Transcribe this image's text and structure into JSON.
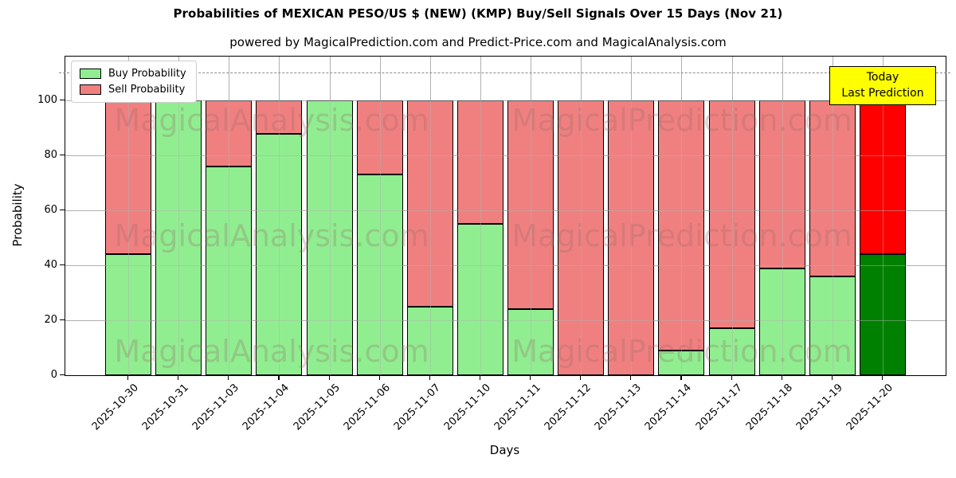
{
  "title": "Probabilities of MEXICAN PESO/US $ (NEW) (KMP) Buy/Sell Signals Over 15 Days (Nov 21)",
  "subtitle": "powered by MagicalPrediction.com and Predict-Price.com and MagicalAnalysis.com",
  "annotation_box": {
    "line1": "Today",
    "line2": "Last Prediction"
  },
  "watermarks": {
    "left": "MagicalAnalysis.com",
    "right": "MagicalPrediction.com"
  },
  "legend": {
    "items": [
      {
        "label": "Buy Probability",
        "color": "#90ee90"
      },
      {
        "label": "Sell Probability",
        "color": "#f08080"
      }
    ]
  },
  "colors": {
    "buy": "#90ee90",
    "sell": "#f08080",
    "today_buy": "#008000",
    "today_sell": "#ff0000",
    "grid": "#b0b0b0",
    "dashed_line": "#8a8a8a",
    "annotation_bg": "#ffff00"
  },
  "chart_data": {
    "type": "bar",
    "stacked": true,
    "title": "Probabilities of MEXICAN PESO/US $ (NEW) (KMP) Buy/Sell Signals Over 15 Days (Nov 21)",
    "xlabel": "Days",
    "ylabel": "Probability",
    "categories": [
      "2025-10-30",
      "2025-10-31",
      "2025-11-03",
      "2025-11-04",
      "2025-11-05",
      "2025-11-06",
      "2025-11-07",
      "2025-11-10",
      "2025-11-11",
      "2025-11-12",
      "2025-11-13",
      "2025-11-14",
      "2025-11-17",
      "2025-11-18",
      "2025-11-19",
      "2025-11-20"
    ],
    "series": [
      {
        "name": "Buy Probability",
        "color": "#90ee90",
        "values": [
          44,
          100,
          76,
          88,
          100,
          73,
          25,
          55,
          24,
          0,
          0,
          9,
          17,
          39,
          36,
          44
        ]
      },
      {
        "name": "Sell Probability",
        "color": "#f08080",
        "values": [
          56,
          0,
          24,
          12,
          0,
          27,
          75,
          45,
          76,
          100,
          100,
          91,
          83,
          61,
          64,
          56
        ]
      }
    ],
    "last_bar_colors": {
      "buy": "#008000",
      "sell": "#ff0000"
    },
    "yticks": [
      0,
      20,
      40,
      60,
      80,
      100
    ],
    "ylim": [
      0,
      116
    ],
    "dashed_line_y": 110,
    "grid": true,
    "legend_position": "upper left"
  }
}
